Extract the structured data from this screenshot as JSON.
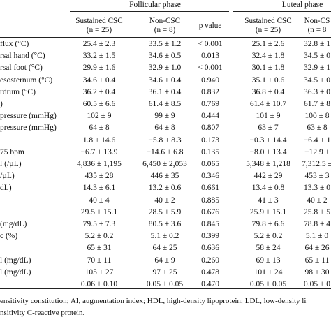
{
  "header": {
    "follicular_phase": "Follicular phase",
    "luteal_phase": "Luteal phase",
    "columns": [
      {
        "line1": "Sustained CSC",
        "line2": "(n = 25)"
      },
      {
        "line1": "Non-CSC",
        "line2": "(n = 8)"
      },
      {
        "line1": "p value",
        "line2": ""
      },
      {
        "line1": "Sustained CSC",
        "line2": "(n = 25)"
      },
      {
        "line1": "Non-CS",
        "line2": "(n = 8"
      }
    ]
  },
  "rows": [
    {
      "label": "flux (°C)",
      "v1": "25.4 ± 2.3",
      "v2": "33.5 ± 1.2",
      "p": "< 0.001",
      "v4": "25.1 ± 2.6",
      "v5": "32.8 ± 1"
    },
    {
      "label": "rsal hand (°C)",
      "v1": "33.2 ± 1.5",
      "v2": "34.6 ± 0.5",
      "p": "0.013",
      "v4": "32.4 ± 1.8",
      "v5": "34.5 ± 0"
    },
    {
      "label": "rsal foot (°C)",
      "v1": "29.9 ± 1.6",
      "v2": "32.9 ± 1.0",
      "p": "< 0.001",
      "v4": "30.1 ± 1.8",
      "v5": "32.9 ± 1"
    },
    {
      "label": "esosternum (°C)",
      "v1": "34.6 ± 0.4",
      "v2": "34.6 ± 0.4",
      "p": "0.940",
      "v4": "35.1 ± 0.6",
      "v5": "34.5 ± 0"
    },
    {
      "label": "rdrum (°C)",
      "v1": "36.2 ± 0.4",
      "v2": "36.1 ± 0.4",
      "p": "0.832",
      "v4": "36.8 ± 0.4",
      "v5": "36.3 ± 0"
    },
    {
      "label": ")",
      "v1": "60.5 ± 6.6",
      "v2": "61.4 ± 8.5",
      "p": "0.769",
      "v4": "61.4 ± 10.7",
      "v5": "61.7 ± 8"
    },
    {
      "label": "pressure (mmHg)",
      "v1": "102 ± 9",
      "v2": "99 ± 9",
      "p": "0.444",
      "v4": "101 ± 9",
      "v5": "100 ± 8"
    },
    {
      "label": "pressure (mmHg)",
      "v1": "64 ± 8",
      "v2": "64 ± 8",
      "p": "0.807",
      "v4": "63 ± 7",
      "v5": "63 ± 8"
    },
    {
      "label": "",
      "v1": "1.8 ± 14.6",
      "v2": "−5.8 ± 8.3",
      "p": "0.173",
      "v4": "−0.3 ± 14.4",
      "v5": "−6.4 ± 1"
    },
    {
      "label": "75 bpm",
      "v1": "−6.7 ± 13.9",
      "v2": "−14.6 ± 6.8",
      "p": "0.135",
      "v4": "−8.0 ± 13.4",
      "v5": "−12.9 ±"
    },
    {
      "label": "l (/µL)",
      "v1": "4,836 ± 1,195",
      "v2": "6,450 ± 2,053",
      "p": "0.065",
      "v4": "5,348 ± 1,218",
      "v5": "7,312.5 ±"
    },
    {
      "label": "/µL)",
      "v1": "435 ± 28",
      "v2": "446 ± 35",
      "p": "0.346",
      "v4": "442 ± 29",
      "v5": "453 ± 3"
    },
    {
      "label": "dL)",
      "v1": "14.3 ± 6.1",
      "v2": "13.2 ± 0.6",
      "p": "0.661",
      "v4": "13.4 ± 0.8",
      "v5": "13.3 ± 0"
    },
    {
      "label": "",
      "v1": "40 ± 4",
      "v2": "40 ± 2",
      "p": "0.885",
      "v4": "41 ± 3",
      "v5": "40 ± 2"
    },
    {
      "label": "",
      "v1": "29.5 ± 15.1",
      "v2": "28.5 ± 5.9",
      "p": "0.676",
      "v4": "25.9 ± 15.1",
      "v5": "25.8 ± 5"
    },
    {
      "label": "(mg/dL)",
      "v1": "79.5 ± 7.3",
      "v2": "80.5 ± 3.6",
      "p": "0.845",
      "v4": "79.8 ± 6.6",
      "v5": "78.8 ± 4"
    },
    {
      "label": "c (%)",
      "v1": "5.2 ± 0.2",
      "v2": "5.1 ± 0.2",
      "p": "0.399",
      "v4": "5.2 ± 0.2",
      "v5": "5.1 ± 0"
    },
    {
      "label": "",
      "v1": "65 ± 31",
      "v2": "64 ± 25",
      "p": "0.636",
      "v4": "58 ± 24",
      "v5": "64 ± 26"
    },
    {
      "label": "l (mg/dL)",
      "v1": "70 ± 11",
      "v2": "64 ± 9",
      "p": "0.260",
      "v4": "69 ± 13",
      "v5": "65 ± 11"
    },
    {
      "label": "l (mg/dL)",
      "v1": "105 ± 27",
      "v2": "97 ± 25",
      "p": "0.478",
      "v4": "101 ± 24",
      "v5": "98 ± 30"
    },
    {
      "label": "",
      "v1": "0.06 ± 0.10",
      "v2": "0.05 ± 0.05",
      "p": "0.470",
      "v4": "0.05 ± 0.05",
      "v5": "0.05 ± 0"
    }
  ],
  "footnote": {
    "line1": "ensitivity constitution; AI, augmentation index; HDL, high-density lipoprotein; LDL, low-density li",
    "line2": "nsitivity C-reactive protein."
  }
}
